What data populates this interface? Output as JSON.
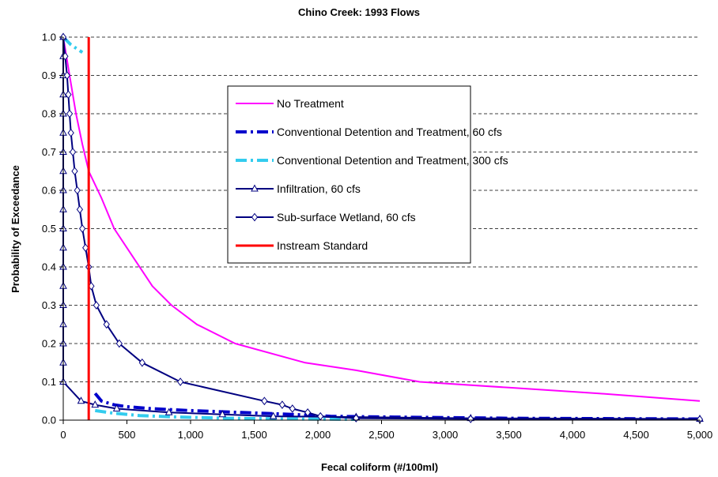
{
  "chart_data": {
    "type": "line",
    "title": "Chino Creek: 1993 Flows",
    "xlabel": "Fecal coliform (#/100ml)",
    "ylabel": "Probability of Exceedance",
    "xlim": [
      0,
      5000
    ],
    "ylim": [
      0,
      1
    ],
    "x_ticks": [
      "0",
      "500",
      "1,000",
      "1,500",
      "2,000",
      "2,500",
      "3,000",
      "3,500",
      "4,000",
      "4,500",
      "5,000"
    ],
    "y_ticks": [
      "0.0",
      "0.1",
      "0.2",
      "0.3",
      "0.4",
      "0.5",
      "0.6",
      "0.7",
      "0.8",
      "0.9",
      "1.0"
    ],
    "grid": "horizontal dashed",
    "legend_position": "upper-right inside",
    "series": [
      {
        "name": "No Treatment",
        "color": "#ff00ff",
        "style": "solid",
        "marker": "none",
        "points": [
          [
            0,
            1.0
          ],
          [
            50,
            0.9
          ],
          [
            100,
            0.8
          ],
          [
            150,
            0.72
          ],
          [
            200,
            0.65
          ],
          [
            300,
            0.58
          ],
          [
            400,
            0.5
          ],
          [
            500,
            0.45
          ],
          [
            700,
            0.35
          ],
          [
            850,
            0.3
          ],
          [
            1050,
            0.25
          ],
          [
            1350,
            0.2
          ],
          [
            1900,
            0.15
          ],
          [
            2300,
            0.13
          ],
          [
            2800,
            0.1
          ],
          [
            3500,
            0.085
          ],
          [
            4200,
            0.07
          ],
          [
            5000,
            0.05
          ]
        ]
      },
      {
        "name": "Conventional Detention and Treatment, 60 cfs",
        "color": "#0000cc",
        "style": "dashed",
        "marker": "none",
        "points": [
          [
            250,
            0.07
          ],
          [
            300,
            0.05
          ],
          [
            400,
            0.04
          ],
          [
            500,
            0.035
          ],
          [
            700,
            0.03
          ],
          [
            1000,
            0.025
          ],
          [
            1400,
            0.02
          ],
          [
            1800,
            0.015
          ],
          [
            2100,
            0.01
          ],
          [
            2600,
            0.008
          ],
          [
            3500,
            0.005
          ],
          [
            5000,
            0.003
          ]
        ]
      },
      {
        "name": "Conventional Detention and Treatment, 300 cfs",
        "color": "#33ccee",
        "style": "dashed",
        "marker": "none",
        "points": [
          [
            0,
            1.0
          ],
          [
            60,
            0.98
          ],
          [
            150,
            0.96
          ],
          [
            null,
            null
          ],
          [
            250,
            0.025
          ],
          [
            400,
            0.018
          ],
          [
            600,
            0.012
          ],
          [
            900,
            0.008
          ],
          [
            1300,
            0.005
          ],
          [
            1800,
            0.003
          ],
          [
            2300,
            0.002
          ]
        ]
      },
      {
        "name": "Infiltration, 60 cfs",
        "color": "#000080",
        "style": "solid",
        "marker": "triangle",
        "points": [
          [
            0,
            1.0
          ],
          [
            0,
            0.95
          ],
          [
            0,
            0.9
          ],
          [
            0,
            0.85
          ],
          [
            0,
            0.8
          ],
          [
            0,
            0.75
          ],
          [
            0,
            0.7
          ],
          [
            0,
            0.65
          ],
          [
            0,
            0.6
          ],
          [
            0,
            0.55
          ],
          [
            0,
            0.5
          ],
          [
            0,
            0.45
          ],
          [
            0,
            0.4
          ],
          [
            0,
            0.35
          ],
          [
            0,
            0.3
          ],
          [
            0,
            0.25
          ],
          [
            0,
            0.2
          ],
          [
            0,
            0.15
          ],
          [
            0,
            0.1
          ],
          [
            140,
            0.05
          ],
          [
            250,
            0.04
          ],
          [
            420,
            0.03
          ],
          [
            830,
            0.02
          ],
          [
            1250,
            0.015
          ],
          [
            1650,
            0.01
          ],
          [
            2300,
            0.008
          ],
          [
            3200,
            0.005
          ],
          [
            5000,
            0.003
          ]
        ]
      },
      {
        "name": "Sub-surface Wetland, 60 cfs",
        "color": "#000080",
        "style": "solid",
        "marker": "diamond",
        "points": [
          [
            0,
            1.0
          ],
          [
            15,
            0.95
          ],
          [
            30,
            0.9
          ],
          [
            40,
            0.85
          ],
          [
            50,
            0.8
          ],
          [
            60,
            0.75
          ],
          [
            75,
            0.7
          ],
          [
            90,
            0.65
          ],
          [
            110,
            0.6
          ],
          [
            130,
            0.55
          ],
          [
            150,
            0.5
          ],
          [
            175,
            0.45
          ],
          [
            200,
            0.4
          ],
          [
            220,
            0.35
          ],
          [
            260,
            0.3
          ],
          [
            340,
            0.25
          ],
          [
            440,
            0.2
          ],
          [
            620,
            0.15
          ],
          [
            920,
            0.1
          ],
          [
            1580,
            0.05
          ],
          [
            1720,
            0.04
          ],
          [
            1800,
            0.03
          ],
          [
            1920,
            0.02
          ],
          [
            2020,
            0.01
          ],
          [
            2300,
            0.005
          ],
          [
            3200,
            0.003
          ],
          [
            5000,
            0.002
          ]
        ]
      },
      {
        "name": "Instream Standard",
        "color": "#ff0000",
        "style": "solid",
        "marker": "none",
        "points": [
          [
            200,
            0.0
          ],
          [
            200,
            1.0
          ]
        ]
      }
    ]
  }
}
